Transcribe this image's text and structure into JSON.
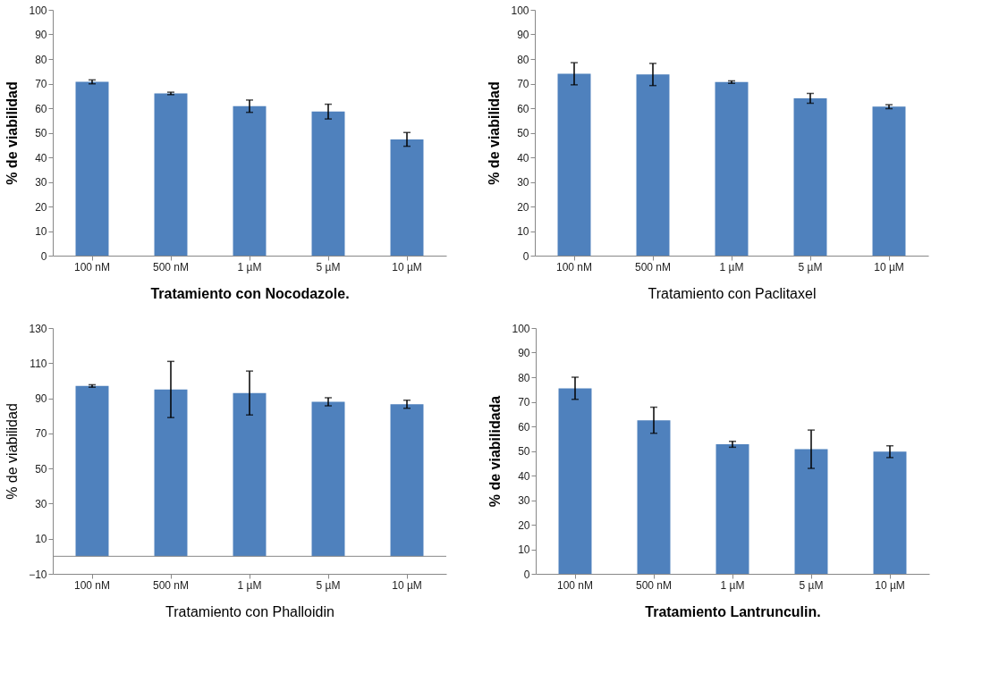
{
  "chart_data": [
    {
      "type": "bar",
      "xlabel": "Tratamiento con Nocodazole.",
      "ylabel": "% de viabilidad",
      "categories": [
        "100 nM",
        "500 nM",
        "1 µM",
        "5 µM",
        "10 µM"
      ],
      "values": [
        70.7,
        66,
        60.8,
        58.6,
        47.3
      ],
      "errors": [
        0.8,
        0.5,
        2.5,
        3,
        2.8
      ],
      "color": "#4f81bd",
      "ylim": [
        0,
        100
      ],
      "yticks": [
        0,
        10,
        20,
        30,
        40,
        50,
        60,
        70,
        80,
        90,
        100
      ],
      "grid": false
    },
    {
      "type": "bar",
      "xlabel": "Tratamiento con Paclitaxel",
      "ylabel": "% de viabilidad",
      "categories": [
        "100 nM",
        "500 nM",
        "1 µM",
        "5 µM",
        "10 µM"
      ],
      "values": [
        74,
        73.7,
        70.6,
        64,
        60.6
      ],
      "errors": [
        4.5,
        4.5,
        0.5,
        2,
        0.8
      ],
      "color": "#4f81bd",
      "ylim": [
        0,
        100
      ],
      "yticks": [
        0,
        10,
        20,
        30,
        40,
        50,
        60,
        70,
        80,
        90,
        100
      ],
      "grid": false
    },
    {
      "type": "bar",
      "xlabel": "Tratamiento con Phalloidin",
      "ylabel": "% de viabilidad",
      "categories": [
        "100 nM",
        "500 nM",
        "1 µM",
        "5 µM",
        "10 µM"
      ],
      "values": [
        97,
        95,
        93,
        88,
        86.6
      ],
      "errors": [
        0.7,
        16,
        12.5,
        2.3,
        2.3
      ],
      "color": "#4f81bd",
      "ylim": [
        -10,
        130
      ],
      "yticks": [
        -10,
        10,
        30,
        50,
        70,
        90,
        110,
        130
      ],
      "grid": false
    },
    {
      "type": "bar",
      "xlabel": "Tratamiento Lantrunculin.",
      "ylabel": "% de viabilidada",
      "categories": [
        "100 nM",
        "500 nM",
        "1 µM",
        "5 µM",
        "10 µM"
      ],
      "values": [
        75.5,
        62.5,
        52.7,
        50.7,
        49.7
      ],
      "errors": [
        4.5,
        5.3,
        1.2,
        7.8,
        2.4
      ],
      "color": "#4f81bd",
      "ylim": [
        0,
        100
      ],
      "yticks": [
        0,
        10,
        20,
        30,
        40,
        50,
        60,
        70,
        80,
        90,
        100
      ],
      "grid": false
    }
  ]
}
